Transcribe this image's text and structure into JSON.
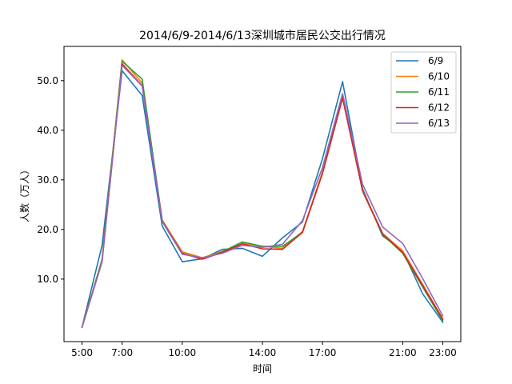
{
  "chart_data": {
    "type": "line",
    "title": "2014/6/9-2014/6/13深圳城市居民公交出行情况",
    "xlabel": "时间",
    "ylabel": "人数（万人）",
    "x": [
      5,
      6,
      7,
      8,
      9,
      10,
      11,
      12,
      13,
      14,
      15,
      16,
      17,
      18,
      19,
      20,
      21,
      22,
      23
    ],
    "xlim": [
      4.1,
      23.9
    ],
    "ylim": [
      -2.6,
      56.9
    ],
    "xticks": [
      5,
      7,
      10,
      14,
      17,
      21,
      23
    ],
    "xtick_labels": [
      "5:00",
      "7:00",
      "10:00",
      "14:00",
      "17:00",
      "21:00",
      "23:00"
    ],
    "yticks": [
      10,
      20,
      30,
      40,
      50
    ],
    "ytick_labels": [
      "10.0",
      "20.0",
      "30.0",
      "40.0",
      "50.0"
    ],
    "grid": false,
    "legend_position": "top-right",
    "series": [
      {
        "name": "6/9",
        "color": "#1f77b4",
        "values": [
          0.3,
          16.8,
          52.0,
          47.0,
          20.7,
          13.5,
          14.1,
          16.0,
          16.2,
          14.6,
          18.3,
          21.5,
          34.3,
          49.8,
          28.2,
          18.7,
          15.7,
          7.0,
          1.3
        ]
      },
      {
        "name": "6/10",
        "color": "#ff7f0e",
        "values": [
          0.3,
          14.0,
          54.2,
          49.5,
          21.9,
          15.5,
          14.3,
          15.6,
          17.2,
          16.6,
          16.2,
          19.6,
          31.6,
          46.5,
          27.9,
          19.2,
          15.7,
          8.9,
          2.0
        ]
      },
      {
        "name": "6/11",
        "color": "#2ca02c",
        "values": [
          0.3,
          13.9,
          53.9,
          50.3,
          21.8,
          15.2,
          14.1,
          15.5,
          17.5,
          16.6,
          16.6,
          19.4,
          31.4,
          46.9,
          27.7,
          19.0,
          15.2,
          8.4,
          1.6
        ]
      },
      {
        "name": "6/12",
        "color": "#d62728",
        "values": [
          0.3,
          13.5,
          53.4,
          49.0,
          21.7,
          15.2,
          14.0,
          15.4,
          17.1,
          16.1,
          16.0,
          19.4,
          31.3,
          46.5,
          27.8,
          19.1,
          15.4,
          8.7,
          1.9
        ]
      },
      {
        "name": "6/13",
        "color": "#9467bd",
        "values": [
          0.3,
          13.5,
          53.1,
          48.9,
          21.6,
          15.0,
          14.3,
          15.2,
          16.8,
          16.4,
          17.0,
          21.8,
          32.5,
          47.4,
          29.1,
          20.5,
          17.2,
          10.1,
          2.6
        ]
      }
    ]
  }
}
